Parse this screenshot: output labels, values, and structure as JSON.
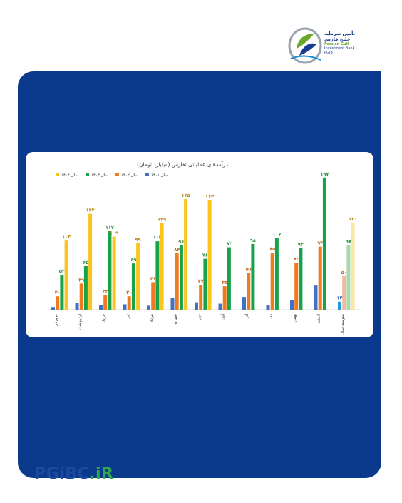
{
  "colors": {
    "panel": "#0b3a8c",
    "s1401": "#4470c4",
    "s1402": "#f07a1e",
    "s1403": "#18a34a",
    "s1404": "#f9c51e",
    "highlight": "#f2b8a0"
  },
  "logo": {
    "line1": "تأمین سرمایه",
    "line2": "خلیج فارس",
    "line3": "Persian Gulf",
    "line4": "Investment Bank",
    "line5": "PGIB"
  },
  "footer": {
    "brand_main": "PGiBC",
    "brand_dot": ".iR"
  },
  "chart_data": {
    "type": "bar",
    "title": "درآمدهای عملیاتی تفارس (میلیارد تومان)",
    "categories": [
      "فروردین",
      "اردیبهشت",
      "خرداد",
      "تیر",
      "مرداد",
      "شهریور",
      "مهر",
      "آبان",
      "آذر",
      "دی",
      "بهمن",
      "اسفند",
      "متوسط سال"
    ],
    "series": [
      {
        "name": "سال ۱۴۰۱",
        "color": "#4470c4",
        "values": [
          4,
          10,
          7,
          8,
          6,
          17,
          11,
          9,
          19,
          7,
          14,
          36,
          12
        ],
        "labels": [
          null,
          null,
          null,
          null,
          null,
          null,
          null,
          null,
          null,
          null,
          null,
          null,
          "۱۲"
        ]
      },
      {
        "name": "سال ۱۴۰۲",
        "color": "#f07a1e",
        "values": [
          20,
          39,
          22,
          20,
          41,
          84,
          37,
          35,
          55,
          85,
          70,
          94,
          50
        ],
        "labels": [
          "۲۰",
          "۳۹",
          "۲۲",
          "۲۰",
          "۴۱",
          "۸۴",
          "۳۷",
          "۳۵",
          "۵۵",
          "۸۵",
          "۷۰",
          "۹۴",
          "۵۰"
        ]
      },
      {
        "name": "سال ۱۴۰۳",
        "color": "#18a34a",
        "values": [
          52,
          65,
          117,
          69,
          102,
          96,
          76,
          93,
          98,
          107,
          92,
          197,
          97
        ],
        "labels": [
          "۵۲",
          "۶۵",
          "۱۱۷",
          "۶۹",
          "۱۰۲",
          "۹۶",
          "۷۶",
          "۹۳",
          "۹۸",
          "۱۰۷",
          "۹۲",
          "۱۹۷",
          "۹۷"
        ]
      },
      {
        "name": "سال ۱۴۰۴",
        "color": "#f9c51e",
        "values": [
          103,
          143,
          109,
          99,
          129,
          165,
          163,
          null,
          null,
          null,
          null,
          null,
          130
        ],
        "labels": [
          "۱۰۳",
          "۱۴۳",
          "۱۰۹",
          "۹۹",
          "۱۲۹",
          "۱۶۵",
          "۱۶۳",
          null,
          null,
          null,
          null,
          null,
          "۱۳۰"
        ]
      }
    ],
    "ylim": [
      0,
      200
    ],
    "legend": "top-left",
    "grid": false
  }
}
